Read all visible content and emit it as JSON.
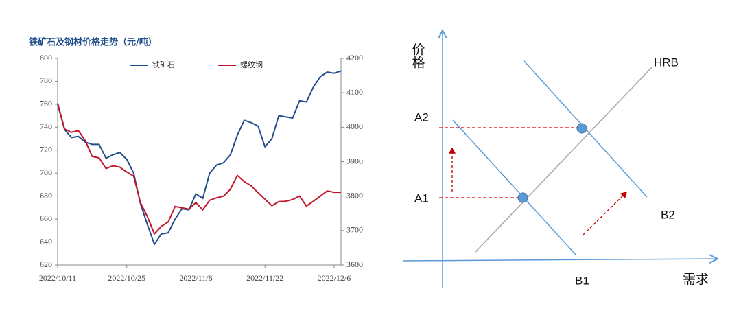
{
  "chart_data": {
    "type": "line",
    "title": "铁矿石及钢材价格走势（元/吨）",
    "categories": [
      "2022/10/11",
      null,
      null,
      null,
      null,
      null,
      null,
      null,
      null,
      null,
      "2022/10/25",
      null,
      null,
      null,
      null,
      null,
      null,
      null,
      null,
      null,
      "2022/11/8",
      null,
      null,
      null,
      null,
      null,
      null,
      null,
      null,
      null,
      "2022/11/22",
      null,
      null,
      null,
      null,
      null,
      null,
      null,
      null,
      null,
      "2022/12/6",
      null
    ],
    "series": [
      {
        "name": "铁矿石",
        "color": "#1f4e8c",
        "values": [
          760,
          738,
          731,
          732,
          727,
          725,
          725,
          713,
          716,
          718,
          712,
          700,
          673,
          655,
          638,
          647,
          648,
          660,
          669,
          668,
          682,
          678,
          700,
          707,
          709,
          716,
          733,
          746,
          744,
          741,
          723,
          730,
          750,
          749,
          748,
          763,
          762,
          775,
          784,
          788,
          787,
          789
        ]
      },
      {
        "name": "螺纹钢",
        "color": "#c0152a",
        "axis": "y2",
        "values": [
          4070,
          3995,
          3985,
          3990,
          3961,
          3915,
          3911,
          3880,
          3888,
          3884,
          3870,
          3858,
          3780,
          3740,
          3690,
          3712,
          3725,
          3770,
          3766,
          3762,
          3781,
          3760,
          3788,
          3795,
          3800,
          3820,
          3860,
          3842,
          3830,
          3810,
          3791,
          3772,
          3784,
          3785,
          3790,
          3800,
          3771,
          3785,
          3800,
          3815,
          3811,
          3811
        ]
      }
    ],
    "ylim": [
      620,
      800
    ],
    "yticks": [
      620,
      640,
      660,
      680,
      700,
      720,
      740,
      760,
      780,
      800
    ],
    "y2lim": [
      3600,
      4200
    ],
    "y2ticks": [
      3600,
      3700,
      3800,
      3900,
      4000,
      4100,
      4200
    ],
    "legend": "top"
  },
  "diagram": {
    "y_axis_label": "价格",
    "x_axis_label": "需求",
    "supply_label": "HRB",
    "price_labels": [
      "A2",
      "A1"
    ],
    "demand_labels": [
      "B1",
      "B2"
    ]
  }
}
